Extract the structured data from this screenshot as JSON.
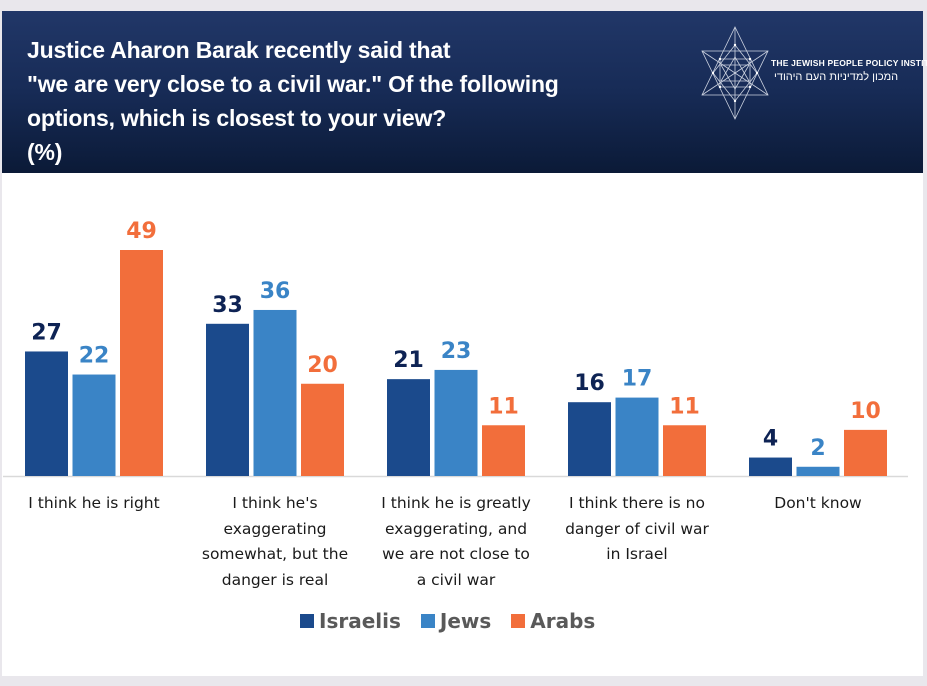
{
  "header": {
    "title_lines": [
      "Justice Aharon Barak recently said that",
      "\"we are very close to a civil war.\" Of the following",
      "options, which is closest to your view?",
      "(%)"
    ],
    "logo": {
      "icon": "star-of-david-icon",
      "name_en": "THE JEWISH PEOPLE POLICY INSTITUTE",
      "name_he": "המכון למדיניות העם היהודי"
    }
  },
  "colors": {
    "Israelis": "#1b4a8c",
    "Jews": "#3a84c6",
    "Arabs": "#f26e3b",
    "Israelis_label": "#0e2354",
    "axis": "#d9d9d9",
    "legend_text": "#595959"
  },
  "chart_data": {
    "type": "bar",
    "title": "Justice Aharon Barak recently said that \"we are very close to a civil war.\" Of the following options, which is closest to your view? (%)",
    "xlabel": "",
    "ylabel": "",
    "ylim": [
      0,
      50
    ],
    "grid": false,
    "legend_position": "bottom",
    "categories": [
      "I think he is right",
      "I think he's exaggerating somewhat, but the danger is real",
      "I think he is greatly exaggerating, and we are not close to a civil war",
      "I think there is no danger of civil war in Israel",
      "Don't know"
    ],
    "category_label_lines": [
      [
        "I think he is right"
      ],
      [
        "I think he's",
        "exaggerating",
        "somewhat, but the",
        "danger is real"
      ],
      [
        "I think he is greatly",
        "exaggerating, and",
        "we are not close to",
        "a civil war"
      ],
      [
        "I think there is no",
        "danger of civil war",
        "in Israel"
      ],
      [
        "Don't know"
      ]
    ],
    "series": [
      {
        "name": "Israelis",
        "values": [
          27,
          33,
          21,
          16,
          4
        ]
      },
      {
        "name": "Jews",
        "values": [
          22,
          36,
          23,
          17,
          2
        ]
      },
      {
        "name": "Arabs",
        "values": [
          49,
          20,
          11,
          11,
          10
        ]
      }
    ]
  },
  "legend": {
    "items": [
      "Israelis",
      "Jews",
      "Arabs"
    ]
  }
}
